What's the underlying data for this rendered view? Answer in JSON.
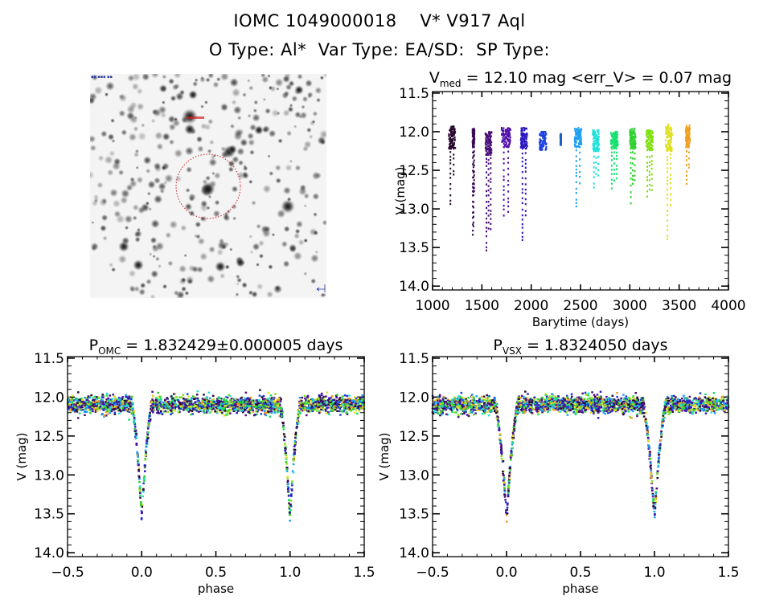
{
  "header": {
    "title": "IOMC 1049000018    V* V917 Aql",
    "subtitle": "O Type: Al*  Var Type: EA/SD:  SP Type:"
  },
  "image_panel": {
    "description": "Grayscale sky field cutout with red aperture circle around target",
    "aperture_color": "#d02020"
  },
  "chart_data": [
    {
      "id": "lightcurve-time",
      "type": "scatter",
      "title_main": "V",
      "title_sub": "med",
      "title_rest": " = 12.10 mag <err_V> = 0.07 mag",
      "xlabel": "Barytime (days)",
      "ylabel": "V (mag)",
      "xlim": [
        1000,
        4000
      ],
      "ylim": [
        11.48,
        14.05
      ],
      "y_inverted": true,
      "xticks": [
        1000,
        1500,
        2000,
        2500,
        3000,
        3500,
        4000
      ],
      "xtick_labels": [
        "1000",
        "1500",
        "2000",
        "2500",
        "3000",
        "3500",
        "4000"
      ],
      "yticks": [
        11.5,
        12.0,
        12.5,
        13.0,
        13.5,
        14.0
      ],
      "ytick_labels": [
        "11.5",
        "12.0",
        "12.5",
        "13.0",
        "13.5",
        "14.0"
      ],
      "grid": false,
      "color_scale": "time (rainbow: dark purple → blue → cyan → green → yellow → orange)",
      "seasons": [
        {
          "t_start": 1165,
          "t_end": 1230,
          "bright": 11.93,
          "faint_core": 12.22,
          "min_depth": 12.98,
          "color": "#2a0a30"
        },
        {
          "t_start": 1405,
          "t_end": 1425,
          "bright": 11.96,
          "faint_core": 12.2,
          "min_depth": 13.35,
          "color": "#3a0a55"
        },
        {
          "t_start": 1535,
          "t_end": 1600,
          "bright": 12.0,
          "faint_core": 12.3,
          "min_depth": 13.55,
          "color": "#4a1078"
        },
        {
          "t_start": 1700,
          "t_end": 1790,
          "bright": 11.95,
          "faint_core": 12.2,
          "min_depth": 13.12,
          "color": "#5010a8"
        },
        {
          "t_start": 1895,
          "t_end": 1960,
          "bright": 11.95,
          "faint_core": 12.22,
          "min_depth": 13.42,
          "color": "#2a18c0"
        },
        {
          "t_start": 2085,
          "t_end": 2155,
          "bright": 12.0,
          "faint_core": 12.24,
          "min_depth": 12.24,
          "color": "#1a40e0"
        },
        {
          "t_start": 2295,
          "t_end": 2305,
          "bright": 12.03,
          "faint_core": 12.18,
          "min_depth": 12.18,
          "color": "#1a60c0"
        },
        {
          "t_start": 2440,
          "t_end": 2510,
          "bright": 11.95,
          "faint_core": 12.2,
          "min_depth": 13.02,
          "color": "#20a0f0"
        },
        {
          "t_start": 2625,
          "t_end": 2690,
          "bright": 11.98,
          "faint_core": 12.25,
          "min_depth": 12.73,
          "color": "#20e0d8"
        },
        {
          "t_start": 2805,
          "t_end": 2880,
          "bright": 12.0,
          "faint_core": 12.22,
          "min_depth": 12.8,
          "color": "#18e070"
        },
        {
          "t_start": 3000,
          "t_end": 3060,
          "bright": 11.96,
          "faint_core": 12.22,
          "min_depth": 12.93,
          "color": "#30d030"
        },
        {
          "t_start": 3165,
          "t_end": 3235,
          "bright": 11.98,
          "faint_core": 12.24,
          "min_depth": 12.88,
          "color": "#80e010"
        },
        {
          "t_start": 3365,
          "t_end": 3430,
          "bright": 11.9,
          "faint_core": 12.25,
          "min_depth": 13.4,
          "color": "#e0e020"
        },
        {
          "t_start": 3565,
          "t_end": 3610,
          "bright": 11.92,
          "faint_core": 12.2,
          "min_depth": 12.7,
          "color": "#f0a020"
        }
      ]
    },
    {
      "id": "phase-omc",
      "type": "scatter",
      "title_main": "P",
      "title_sub": "OMC",
      "title_rest": " = 1.832429±0.000005 days",
      "xlabel": "phase",
      "ylabel": "V (mag)",
      "xlim": [
        -0.5,
        1.5
      ],
      "ylim": [
        11.48,
        14.05
      ],
      "y_inverted": true,
      "xticks": [
        -0.5,
        0.0,
        0.5,
        1.0,
        1.5
      ],
      "xtick_labels": [
        "−0.5",
        "0.0",
        "0.5",
        "1.0",
        "1.5"
      ],
      "yticks": [
        11.5,
        12.0,
        12.5,
        13.0,
        13.5,
        14.0
      ],
      "ytick_labels": [
        "11.5",
        "12.0",
        "12.5",
        "13.0",
        "13.5",
        "14.0"
      ],
      "grid": false,
      "baseline_mag": 12.1,
      "scatter_mag": 0.07,
      "eclipse_centers": [
        0.0,
        1.0
      ],
      "eclipse_half_width": 0.07,
      "eclipse_min_mag": 13.55
    },
    {
      "id": "phase-vsx",
      "type": "scatter",
      "title_main": "P",
      "title_sub": "VSX",
      "title_rest": " = 1.8324050 days",
      "xlabel": "phase",
      "ylabel": "V (mag)",
      "xlim": [
        -0.5,
        1.5
      ],
      "ylim": [
        11.48,
        14.05
      ],
      "y_inverted": true,
      "xticks": [
        -0.5,
        0.0,
        0.5,
        1.0,
        1.5
      ],
      "xtick_labels": [
        "−0.5",
        "0.0",
        "0.5",
        "1.0",
        "1.5"
      ],
      "yticks": [
        11.5,
        12.0,
        12.5,
        13.0,
        13.5,
        14.0
      ],
      "ytick_labels": [
        "11.5",
        "12.0",
        "12.5",
        "13.0",
        "13.5",
        "14.0"
      ],
      "grid": false,
      "baseline_mag": 12.1,
      "scatter_mag": 0.07,
      "eclipse_centers": [
        0.0,
        1.0
      ],
      "eclipse_half_width": 0.08,
      "eclipse_min_mag": 13.55
    }
  ]
}
